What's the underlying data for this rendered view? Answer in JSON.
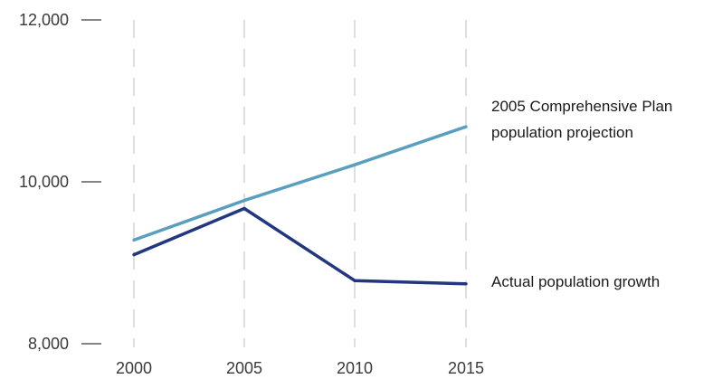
{
  "chart_data": {
    "type": "line",
    "x": [
      2000,
      2005,
      2010,
      2015
    ],
    "xticks": [
      "2000",
      "2005",
      "2010",
      "2015"
    ],
    "yticks": [
      8000,
      10000,
      12000
    ],
    "ytick_labels": [
      "8,000",
      "10,000",
      "12,000"
    ],
    "ylim": [
      8000,
      12000
    ],
    "grid": "vertical dashed",
    "series": [
      {
        "name_lines": [
          "2005 Comprehensive Plan",
          "population projection"
        ],
        "color": "#5b9fbf",
        "values": [
          9280,
          9770,
          10210,
          10680
        ]
      },
      {
        "name_lines": [
          "Actual population growth"
        ],
        "color": "#22377f",
        "values": [
          9100,
          9670,
          8780,
          8740
        ]
      }
    ]
  }
}
